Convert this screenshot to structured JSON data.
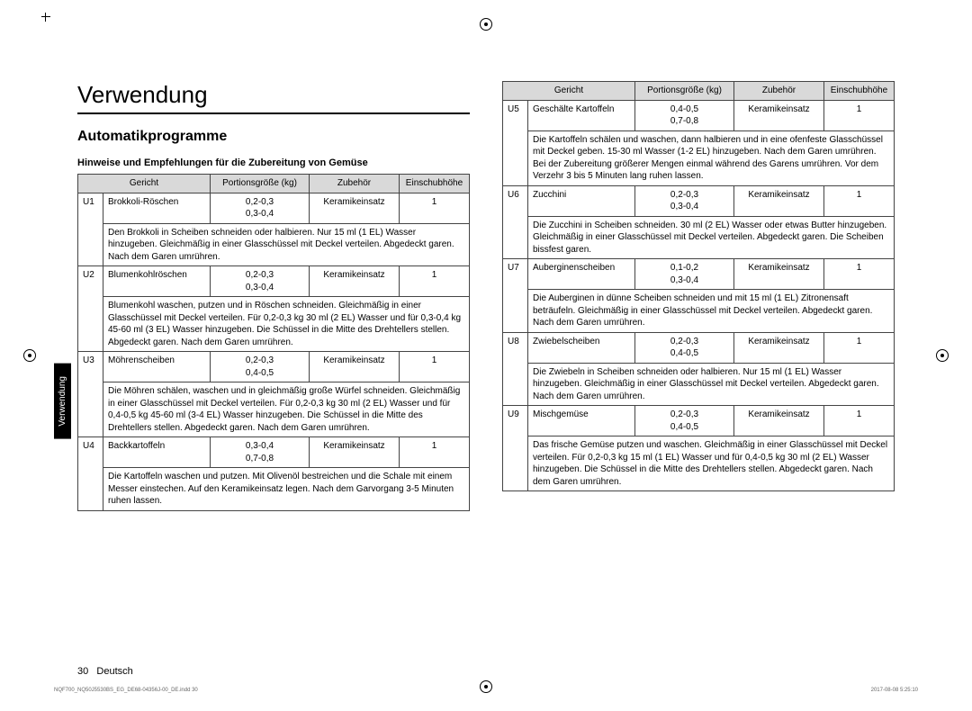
{
  "header": {
    "title": "Verwendung",
    "section": "Automatikprogramme",
    "subtitle": "Hinweise und Empfehlungen für die Zubereitung von Gemüse",
    "sidetab": "Verwendung"
  },
  "columns": [
    "Gericht",
    "Portionsgröße (kg)",
    "Zubehör",
    "Einschubhöhe"
  ],
  "left_rows": [
    {
      "code": "U1",
      "dish": "Brokkoli-Röschen",
      "portion": "0,2-0,3\n0,3-0,4",
      "acc": "Keramikeinsatz",
      "level": "1",
      "instr": "Den Brokkoli in Scheiben schneiden oder halbieren. Nur 15 ml (1 EL) Wasser hinzugeben. Gleichmäßig in einer Glasschüssel mit Deckel verteilen. Abgedeckt garen. Nach dem Garen umrühren."
    },
    {
      "code": "U2",
      "dish": "Blumenkohlröschen",
      "portion": "0,2-0,3\n0,3-0,4",
      "acc": "Keramikeinsatz",
      "level": "1",
      "instr": "Blumenkohl waschen, putzen und in Röschen schneiden. Gleichmäßig in einer Glasschüssel mit Deckel verteilen. Für 0,2-0,3 kg 30 ml (2 EL) Wasser und für 0,3-0,4 kg 45-60 ml (3 EL) Wasser hinzugeben. Die Schüssel in die Mitte des Drehtellers stellen. Abgedeckt garen. Nach dem Garen umrühren."
    },
    {
      "code": "U3",
      "dish": "Möhrenscheiben",
      "portion": "0,2-0,3\n0,4-0,5",
      "acc": "Keramikeinsatz",
      "level": "1",
      "instr": "Die Möhren schälen, waschen und in gleichmäßig große Würfel schneiden. Gleichmäßig in einer Glasschüssel mit Deckel verteilen. Für 0,2-0,3 kg 30 ml (2 EL) Wasser und für 0,4-0,5 kg 45-60 ml (3-4 EL) Wasser hinzugeben. Die Schüssel in die Mitte des Drehtellers stellen. Abgedeckt garen. Nach dem Garen umrühren."
    },
    {
      "code": "U4",
      "dish": "Backkartoffeln",
      "portion": "0,3-0,4\n0,7-0,8",
      "acc": "Keramikeinsatz",
      "level": "1",
      "instr": "Die Kartoffeln waschen und putzen. Mit Olivenöl bestreichen und die Schale mit einem Messer einstechen. Auf den Keramikeinsatz legen. Nach dem Garvorgang 3-5 Minuten ruhen lassen."
    }
  ],
  "right_rows": [
    {
      "code": "U5",
      "dish": "Geschälte Kartoffeln",
      "portion": "0,4-0,5\n0,7-0,8",
      "acc": "Keramikeinsatz",
      "level": "1",
      "instr": "Die Kartoffeln schälen und waschen, dann halbieren und in eine ofenfeste Glasschüssel mit Deckel geben. 15-30 ml Wasser (1-2 EL) hinzugeben. Nach dem Garen umrühren. Bei der Zubereitung größerer Mengen einmal während des Garens umrühren. Vor dem Verzehr 3 bis 5 Minuten lang ruhen lassen."
    },
    {
      "code": "U6",
      "dish": "Zucchini",
      "portion": "0,2-0,3\n0,3-0,4",
      "acc": "Keramikeinsatz",
      "level": "1",
      "instr": "Die Zucchini in Scheiben schneiden. 30 ml (2 EL) Wasser oder etwas Butter hinzugeben. Gleichmäßig in einer Glasschüssel mit Deckel verteilen. Abgedeckt garen. Die Scheiben bissfest garen."
    },
    {
      "code": "U7",
      "dish": "Auberginenscheiben",
      "portion": "0,1-0,2\n0,3-0,4",
      "acc": "Keramikeinsatz",
      "level": "1",
      "instr": "Die Auberginen in dünne Scheiben schneiden und mit 15 ml (1 EL) Zitronensaft beträufeln. Gleichmäßig in einer Glasschüssel mit Deckel verteilen. Abgedeckt garen. Nach dem Garen umrühren."
    },
    {
      "code": "U8",
      "dish": "Zwiebelscheiben",
      "portion": "0,2-0,3\n0,4-0,5",
      "acc": "Keramikeinsatz",
      "level": "1",
      "instr": "Die Zwiebeln in Scheiben schneiden oder halbieren. Nur 15 ml (1 EL) Wasser hinzugeben. Gleichmäßig in einer Glasschüssel mit Deckel verteilen. Abgedeckt garen. Nach dem Garen umrühren."
    },
    {
      "code": "U9",
      "dish": "Mischgemüse",
      "portion": "0,2-0,3\n0,4-0,5",
      "acc": "Keramikeinsatz",
      "level": "1",
      "instr": "Das frische Gemüse putzen und waschen. Gleichmäßig in einer Glasschüssel mit Deckel verteilen. Für 0,2-0,3 kg 15 ml (1 EL) Wasser und für 0,4-0,5 kg 30 ml (2 EL) Wasser hinzugeben. Die Schüssel in die Mitte des Drehtellers stellen. Abgedeckt garen. Nach dem Garen umrühren."
    }
  ],
  "footer": {
    "page": "30",
    "lang": "Deutsch",
    "docid": "NQF700_NQ50J5530BS_EG_DE68-04356J-00_DE.indd  30",
    "timestamp": "2017-08-08   5:25:10"
  }
}
